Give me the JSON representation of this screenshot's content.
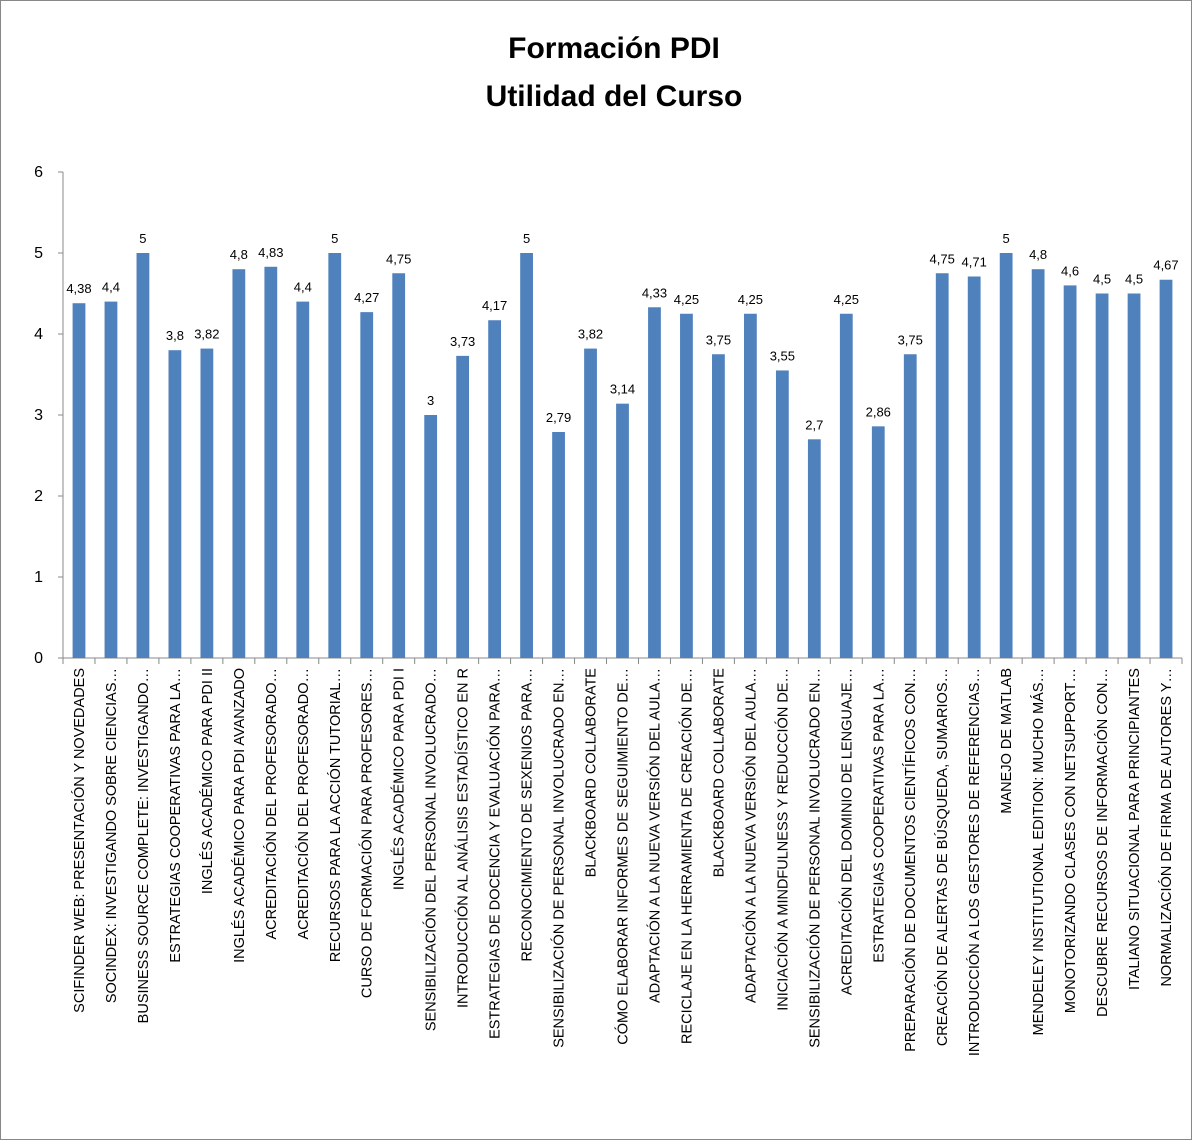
{
  "chart_data": {
    "type": "bar",
    "title": [
      "Formación PDI",
      "Utilidad del Curso"
    ],
    "categories": [
      "SCIFINDER WEB: PRESENTACIÓN Y NOVEDADES",
      "SOCINDEX: INVESTIGANDO SOBRE CIENCIAS…",
      "BUSINESS SOURCE COMPLETE: INVESTIGANDO…",
      "ESTRATEGIAS COOPERATIVAS PARA LA…",
      "INGLÉS ACADÉMICO PARA PDI II",
      "INGLÉS ACADÉMICO PARA PDI AVANZADO",
      "ACREDITACIÓN DEL PROFESORADO…",
      "ACREDITACIÓN DEL PROFESORADO…",
      "RECURSOS PARA LA ACCIÓN TUTORIAL…",
      "CURSO DE FORMACIÓN PARA PROFESORES…",
      "INGLÉS ACADÉMICO PARA PDI I",
      "SENSIBILIZACIÓN DEL PERSONAL INVOLUCRADO…",
      "INTRODUCCIÓN AL ANÁLISIS ESTADÍSTICO EN R",
      "ESTRATEGIAS DE DOCENCIA Y EVALUACIÓN PARA…",
      "RECONOCIMIENTO DE SEXENIOS PARA…",
      "SENSIBILIZACIÓN DE PERSONAL INVOLUCRADO EN…",
      "BLACKBOARD COLLABORATE",
      "CÓMO ELABORAR INFORMES DE SEGUIMIENTO DE…",
      "ADAPTACIÓN A LA NUEVA VERSIÓN DEL AULA…",
      "RECICLAJE EN LA HERRAMIENTA DE CREACIÓN DE…",
      "BLACKBOARD COLLABORATE",
      "ADAPTACIÓN A LA NUEVA VERSIÓN DEL AULA…",
      "INICIACIÓN A MINDFULNESS Y REDUCCIÓN DE…",
      "SENSIBILIZACIÓN DE PERSONAL INVOLUCRADO EN…",
      "ACREDITACIÓN DEL DOMINIO DE LENGUAJE…",
      "ESTRATEGIAS COOPERATIVAS PARA LA…",
      "PREPARACIÓN DE DOCUMENTOS CIENTÍFICOS CON…",
      "CREACIÓN DE ALERTAS DE BÚSQUEDA, SUMARIOS…",
      "INTRODUCCIÓN A LOS GESTORES DE REFERENCIAS…",
      "MANEJO DE MATLAB",
      "MENDELEY INSTITUTIONAL EDITION: MUCHO MÁS…",
      "MONOTORIZANDO CLASES CON NETSUPPORT…",
      "DESCUBRE RECURSOS DE INFORMACIÓN CON…",
      "ITALIANO SITUACIONAL PARA PRINCIPIANTES",
      "NORMALIZACIÓN DE FIRMA DE AUTORES Y…"
    ],
    "values": [
      4.38,
      4.4,
      5,
      3.8,
      3.82,
      4.8,
      4.83,
      4.4,
      5,
      4.27,
      4.75,
      3,
      3.73,
      4.17,
      5,
      2.79,
      3.82,
      3.14,
      4.33,
      4.25,
      3.75,
      4.25,
      3.55,
      2.7,
      4.25,
      2.86,
      3.75,
      4.75,
      4.71,
      5,
      4.8,
      4.6,
      4.5,
      4.5,
      4.67
    ],
    "value_labels": [
      "4,38",
      "4,4",
      "5",
      "3,8",
      "3,82",
      "4,8",
      "4,83",
      "4,4",
      "5",
      "4,27",
      "4,75",
      "3",
      "3,73",
      "4,17",
      "5",
      "2,79",
      "3,82",
      "3,14",
      "4,33",
      "4,25",
      "3,75",
      "4,25",
      "3,55",
      "2,7",
      "4,25",
      "2,86",
      "3,75",
      "4,75",
      "4,71",
      "5",
      "4,8",
      "4,6",
      "4,5",
      "4,5",
      "4,67"
    ],
    "color": "#4f81bd",
    "ylim": [
      0,
      6
    ],
    "yticks": [
      0,
      1,
      2,
      3,
      4,
      5,
      6
    ],
    "grid": false
  }
}
